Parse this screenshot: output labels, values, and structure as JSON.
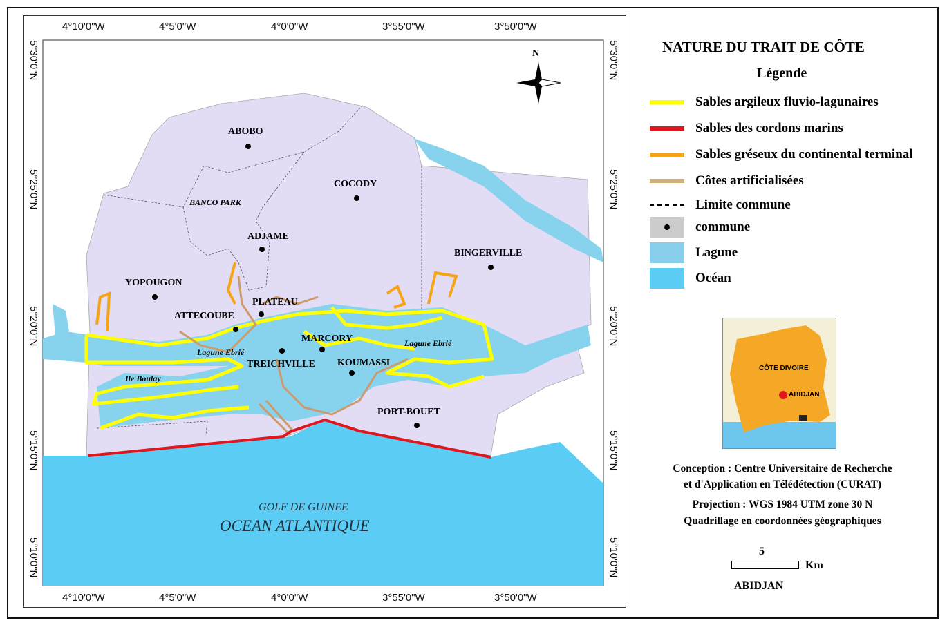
{
  "title": "NATURE DU TRAIT DE CÔTE",
  "legend": {
    "heading": "Légende",
    "items": [
      {
        "label": "Sables argileux fluvio-lagunaires",
        "color": "#ffff00",
        "kind": "line"
      },
      {
        "label": "Sables des cordons marins",
        "color": "#e0161f",
        "kind": "line"
      },
      {
        "label": "Sables gréseux du continental terminal",
        "color": "#f5a416",
        "kind": "line"
      },
      {
        "label": "Côtes artificialisées",
        "color": "#cdb07a",
        "kind": "line"
      },
      {
        "label": "Limite commune",
        "color": "#000000",
        "kind": "dashed"
      },
      {
        "label": "commune",
        "color": "#cccccc",
        "kind": "point"
      },
      {
        "label": "Lagune",
        "color": "#87ceeb",
        "kind": "fill"
      },
      {
        "label": "Océan",
        "color": "#5bcdf5",
        "kind": "fill"
      }
    ]
  },
  "coords": {
    "lon": [
      "4°10'0\"W",
      "4°5'0\"W",
      "4°0'0\"W",
      "3°55'0\"W",
      "3°50'0\"W"
    ],
    "lat": [
      "5°30'0\"N",
      "5°25'0\"N",
      "5°20'0\"N",
      "5°15'0\"N",
      "5°10'0\"N"
    ]
  },
  "north": "N",
  "communes": [
    "ABOBO",
    "COCODY",
    "ADJAME",
    "BINGERVILLE",
    "YOPOUGON",
    "PLATEAU",
    "ATTECOUBE",
    "MARCORY",
    "TREICHVILLE",
    "KOUMASSI",
    "PORT-BOUET"
  ],
  "places": {
    "banco": "BANCO PARK",
    "lagune1": "Lagune Ebrié",
    "lagune2": "Lagune Ebrié",
    "ile": "Ile Boulay",
    "golf": "GOLF DE GUINEE",
    "ocean": "OCEAN ATLANTIQUE"
  },
  "inset": {
    "country": "CÔTE DIVOIRE",
    "city": "ABIDJAN"
  },
  "credits": {
    "line1": "Conception : Centre Universitaire de Recherche",
    "line2": "et d'Application en Télédétection (CURAT)",
    "line3": "Projection : WGS 1984 UTM zone 30 N",
    "line4": "Quadrillage en coordonnées géographiques"
  },
  "scale": {
    "value": "5",
    "unit": "Km",
    "place": "ABIDJAN"
  },
  "colors": {
    "land": "#e2dcf5",
    "lagoon": "#87d3ee",
    "ocean": "#5bcdf5"
  }
}
